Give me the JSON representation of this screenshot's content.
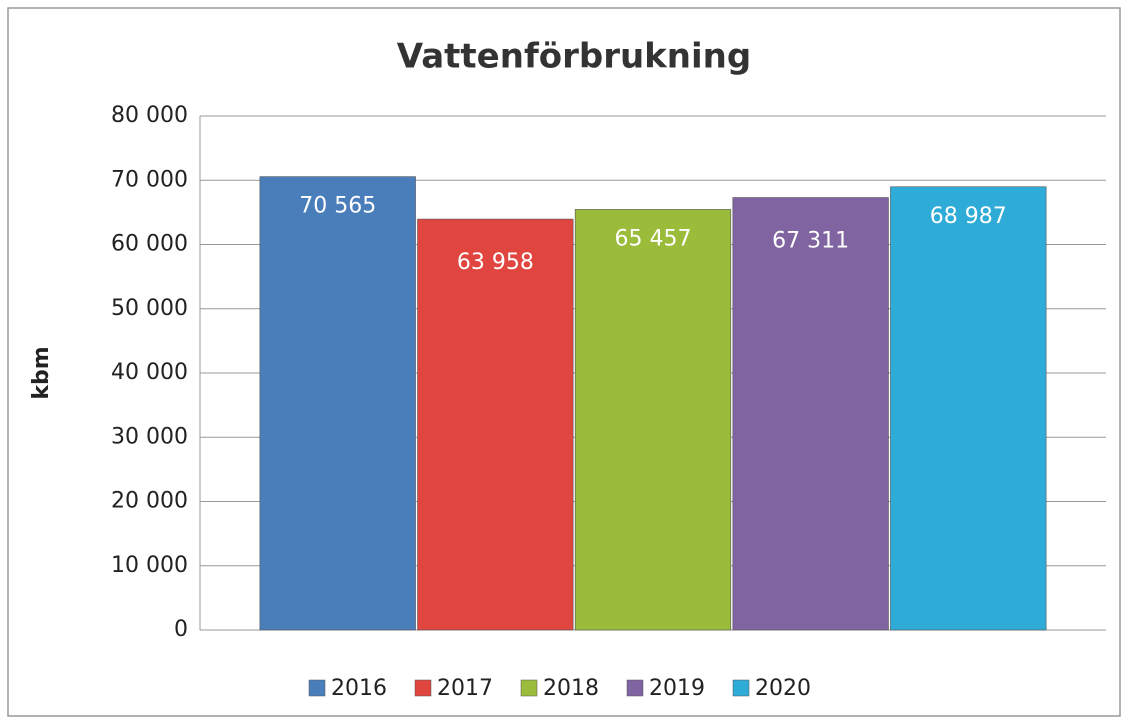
{
  "chart_data": {
    "type": "bar",
    "title": "Vattenförbrukning",
    "y_label": "kbm",
    "series": [
      {
        "name": "2016",
        "color": "#4a7ebb",
        "values": [
          70565
        ],
        "value_labels": [
          "70 565"
        ]
      },
      {
        "name": "2017",
        "color": "#e0463f",
        "values": [
          63958
        ],
        "value_labels": [
          "63 958"
        ]
      },
      {
        "name": "2018",
        "color": "#9bbb3b",
        "values": [
          65457
        ],
        "value_labels": [
          "65 457"
        ]
      },
      {
        "name": "2019",
        "color": "#8064a2",
        "values": [
          67311
        ],
        "value_labels": [
          "67 311"
        ]
      },
      {
        "name": "2020",
        "color": "#2eabd6",
        "values": [
          68987
        ],
        "value_labels": [
          "68 987"
        ]
      }
    ],
    "ylim": [
      0,
      80000
    ],
    "yticks": [
      0,
      {
        "value": 10000,
        "label": "10 000"
      },
      {
        "value": 20000,
        "label": "20 000"
      },
      {
        "value": 30000,
        "label": "30 000"
      },
      {
        "value": 40000,
        "label": "40 000"
      },
      {
        "value": 50000,
        "label": "50 000"
      },
      {
        "value": 60000,
        "label": "60 000"
      },
      {
        "value": 70000,
        "label": "70 000"
      },
      {
        "value": 80000,
        "label": "80 000"
      }
    ],
    "grid": true,
    "legend": "bottom"
  }
}
